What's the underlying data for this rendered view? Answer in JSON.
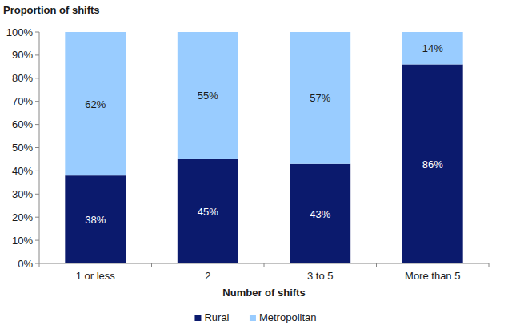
{
  "chart_data": {
    "type": "bar",
    "stacked": true,
    "data_labels": true,
    "grid": false,
    "legend": "bottom",
    "y_label": "Proportion of shifts",
    "x_label": "Number of shifts",
    "categories": [
      "1 or less",
      "2",
      "3 to 5",
      "More than 5"
    ],
    "series": [
      {
        "name": "Rural",
        "color": "#0b1a6d",
        "values": [
          38,
          45,
          43,
          86
        ],
        "value_labels": [
          "38%",
          "45%",
          "43%",
          "86%"
        ]
      },
      {
        "name": "Metropolitan",
        "color": "#99ccff",
        "values": [
          62,
          55,
          57,
          14
        ],
        "value_labels": [
          "62%",
          "55%",
          "57%",
          "14%"
        ]
      }
    ],
    "ylim": [
      0,
      100
    ],
    "yticks": [
      {
        "value": 0,
        "label": "0%"
      },
      {
        "value": 10,
        "label": "10%"
      },
      {
        "value": 20,
        "label": "20%"
      },
      {
        "value": 30,
        "label": "30%"
      },
      {
        "value": 40,
        "label": "40%"
      },
      {
        "value": 50,
        "label": "50%"
      },
      {
        "value": 60,
        "label": "60%"
      },
      {
        "value": 70,
        "label": "70%"
      },
      {
        "value": 80,
        "label": "80%"
      },
      {
        "value": 90,
        "label": "90%"
      },
      {
        "value": 100,
        "label": "100%"
      }
    ]
  }
}
